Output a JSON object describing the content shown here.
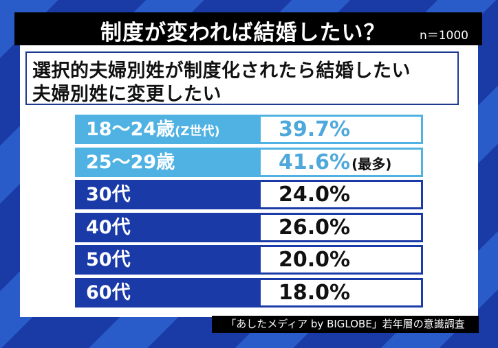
{
  "header": {
    "title": "制度が変われば結婚したい？",
    "sample_size": "n＝1000"
  },
  "question": {
    "line1": "選択的夫婦別姓が制度化されたら結婚したい",
    "line2": "夫婦別姓に変更したい"
  },
  "rows": [
    {
      "label": "18～24歳",
      "suffix": "(Z世代)",
      "value": "39.7%",
      "note": ""
    },
    {
      "label": "25～29歳",
      "suffix": "",
      "value": "41.6%",
      "note": "(最多)"
    },
    {
      "label": "30代",
      "suffix": "",
      "value": "24.0%",
      "note": ""
    },
    {
      "label": "40代",
      "suffix": "",
      "value": "26.0%",
      "note": ""
    },
    {
      "label": "50代",
      "suffix": "",
      "value": "20.0%",
      "note": ""
    },
    {
      "label": "60代",
      "suffix": "",
      "value": "18.0%",
      "note": ""
    }
  ],
  "source": "「あしたメディア by BIGLOBE」若年層の意識調査",
  "colors": {
    "young_accent": "#4fb2e3",
    "older_accent": "#1a3aa8",
    "title_bg": "#000000"
  },
  "chart_data": {
    "type": "table",
    "title": "制度が変われば結婚したい？",
    "subtitle": "選択的夫婦別姓が制度化されたら結婚したい 夫婦別姓に変更したい",
    "sample_size": "n＝1000",
    "categories": [
      "18～24歳(Z世代)",
      "25～29歳",
      "30代",
      "40代",
      "50代",
      "60代"
    ],
    "values": [
      39.7,
      41.6,
      24.0,
      26.0,
      20.0,
      18.0
    ],
    "unit": "%",
    "annotations": [
      {
        "category": "25～29歳",
        "text": "(最多)"
      }
    ],
    "source": "「あしたメディア by BIGLOBE」若年層の意識調査"
  }
}
